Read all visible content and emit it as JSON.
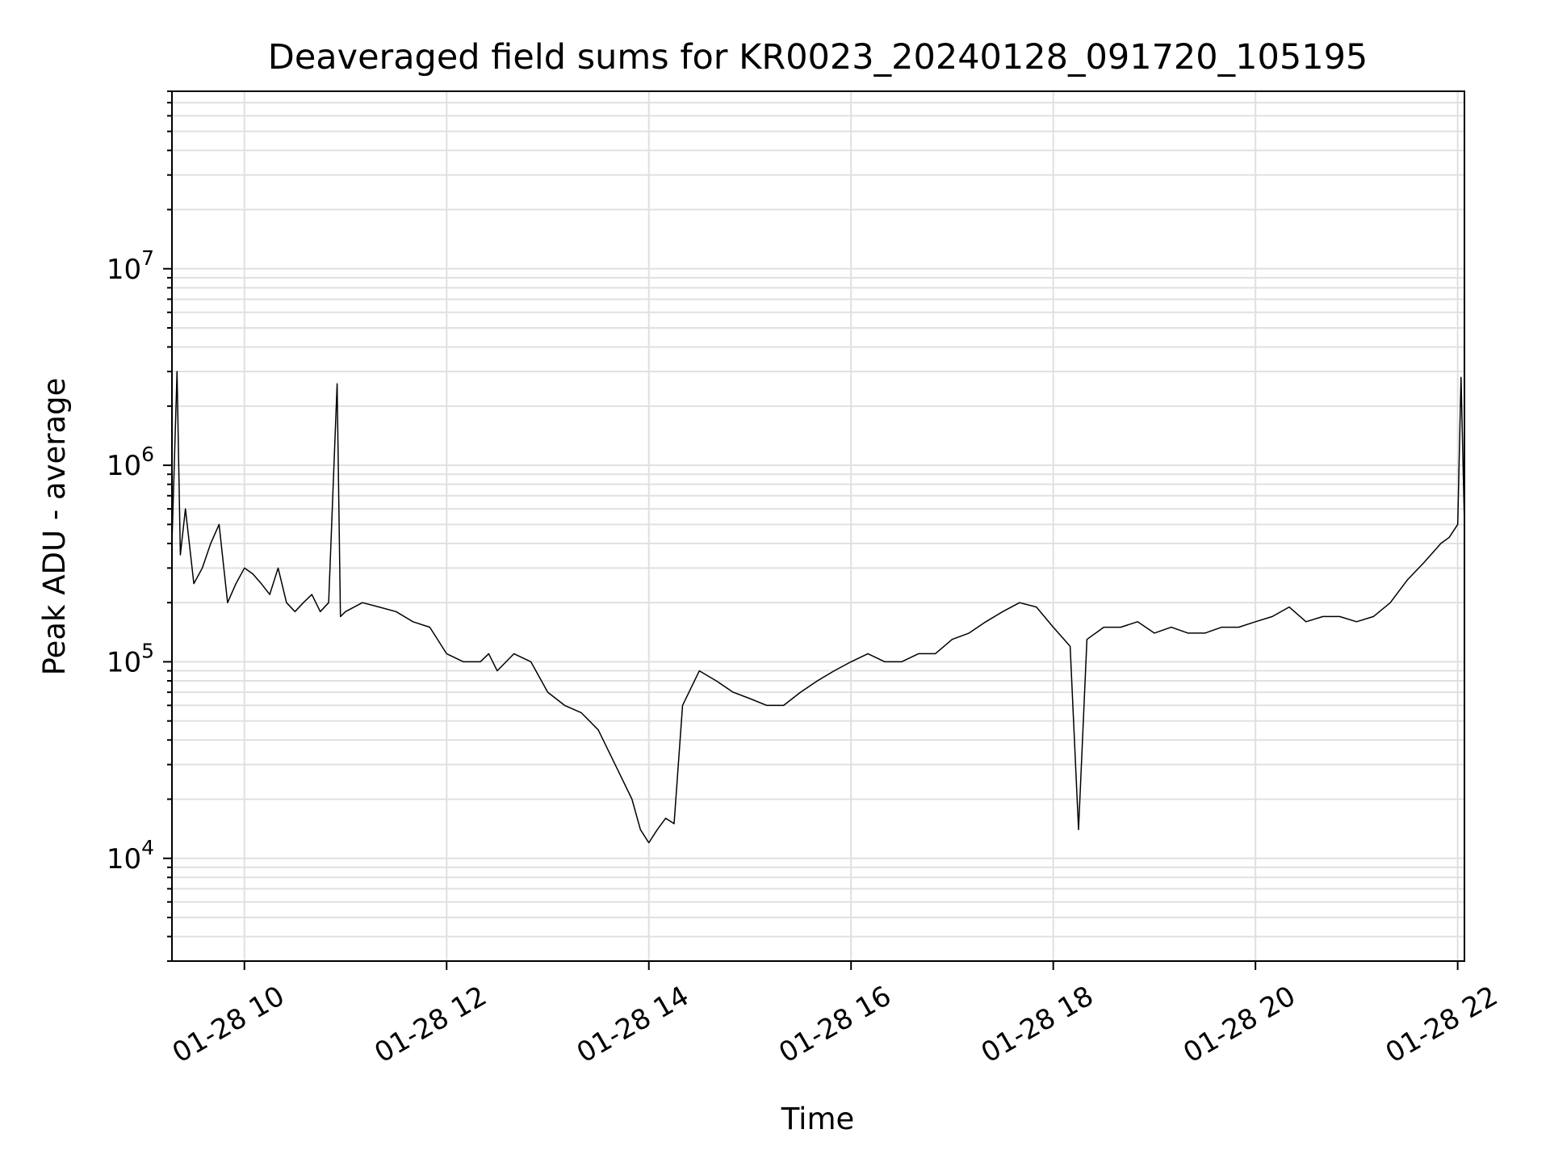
{
  "chart_data": {
    "type": "line",
    "title": "Deaveraged field sums for KR0023_20240128_091720_105195",
    "xlabel": "Time",
    "ylabel": "Peak ADU - average",
    "y_scale": "log",
    "grid": true,
    "grid_minor": true,
    "legend": "none",
    "line_color": "#000000",
    "grid_color": "#e0e0e0",
    "xlim": [
      "01-28 09:17",
      "01-28 22:04"
    ],
    "ylim": [
      3000,
      80000000
    ],
    "x_ticks": [
      {
        "label": "01-28 10",
        "hour": 10
      },
      {
        "label": "01-28 12",
        "hour": 12
      },
      {
        "label": "01-28 14",
        "hour": 14
      },
      {
        "label": "01-28 16",
        "hour": 16
      },
      {
        "label": "01-28 18",
        "hour": 18
      },
      {
        "label": "01-28 20",
        "hour": 20
      },
      {
        "label": "01-28 22",
        "hour": 22
      }
    ],
    "y_ticks": [
      {
        "base": "10",
        "exp": "4",
        "value": 10000
      },
      {
        "base": "10",
        "exp": "5",
        "value": 100000
      },
      {
        "base": "10",
        "exp": "6",
        "value": 1000000
      },
      {
        "base": "10",
        "exp": "7",
        "value": 10000000
      }
    ],
    "series": [
      {
        "x": [
          "01-28 09:17",
          "01-28 09:20",
          "01-28 09:22",
          "01-28 09:25",
          "01-28 09:30",
          "01-28 09:35",
          "01-28 09:40",
          "01-28 09:45",
          "01-28 09:50",
          "01-28 09:55",
          "01-28 10:00",
          "01-28 10:05",
          "01-28 10:10",
          "01-28 10:15",
          "01-28 10:20",
          "01-28 10:25",
          "01-28 10:30",
          "01-28 10:35",
          "01-28 10:40",
          "01-28 10:45",
          "01-28 10:50",
          "01-28 10:55",
          "01-28 10:57",
          "01-28 11:00",
          "01-28 11:10",
          "01-28 11:20",
          "01-28 11:30",
          "01-28 11:40",
          "01-28 11:50",
          "01-28 12:00",
          "01-28 12:10",
          "01-28 12:20",
          "01-28 12:25",
          "01-28 12:30",
          "01-28 12:40",
          "01-28 12:50",
          "01-28 13:00",
          "01-28 13:10",
          "01-28 13:20",
          "01-28 13:30",
          "01-28 13:40",
          "01-28 13:50",
          "01-28 13:55",
          "01-28 14:00",
          "01-28 14:05",
          "01-28 14:10",
          "01-28 14:15",
          "01-28 14:20",
          "01-28 14:30",
          "01-28 14:40",
          "01-28 14:50",
          "01-28 15:00",
          "01-28 15:10",
          "01-28 15:20",
          "01-28 15:30",
          "01-28 15:40",
          "01-28 15:50",
          "01-28 16:00",
          "01-28 16:10",
          "01-28 16:20",
          "01-28 16:30",
          "01-28 16:40",
          "01-28 16:50",
          "01-28 17:00",
          "01-28 17:10",
          "01-28 17:20",
          "01-28 17:30",
          "01-28 17:40",
          "01-28 17:50",
          "01-28 18:00",
          "01-28 18:10",
          "01-28 18:15",
          "01-28 18:20",
          "01-28 18:30",
          "01-28 18:40",
          "01-28 18:50",
          "01-28 19:00",
          "01-28 19:10",
          "01-28 19:20",
          "01-28 19:30",
          "01-28 19:40",
          "01-28 19:50",
          "01-28 20:00",
          "01-28 20:10",
          "01-28 20:20",
          "01-28 20:30",
          "01-28 20:40",
          "01-28 20:50",
          "01-28 21:00",
          "01-28 21:10",
          "01-28 21:20",
          "01-28 21:30",
          "01-28 21:40",
          "01-28 21:50",
          "01-28 21:55",
          "01-28 22:00",
          "01-28 22:02",
          "01-28 22:04"
        ],
        "y": [
          400000,
          3000000,
          350000,
          600000,
          250000,
          300000,
          400000,
          500000,
          200000,
          250000,
          300000,
          280000,
          250000,
          220000,
          300000,
          200000,
          180000,
          200000,
          220000,
          180000,
          200000,
          2600000,
          170000,
          180000,
          200000,
          190000,
          180000,
          160000,
          150000,
          110000,
          100000,
          100000,
          110000,
          90000,
          110000,
          100000,
          70000,
          60000,
          55000,
          45000,
          30000,
          20000,
          14000,
          12000,
          14000,
          16000,
          15000,
          60000,
          90000,
          80000,
          70000,
          65000,
          60000,
          60000,
          70000,
          80000,
          90000,
          100000,
          110000,
          100000,
          100000,
          110000,
          110000,
          130000,
          140000,
          160000,
          180000,
          200000,
          190000,
          150000,
          120000,
          14000,
          130000,
          150000,
          150000,
          160000,
          140000,
          150000,
          140000,
          140000,
          150000,
          150000,
          160000,
          170000,
          190000,
          160000,
          170000,
          170000,
          160000,
          170000,
          200000,
          260000,
          320000,
          400000,
          430000,
          500000,
          2800000,
          500000
        ]
      }
    ]
  }
}
